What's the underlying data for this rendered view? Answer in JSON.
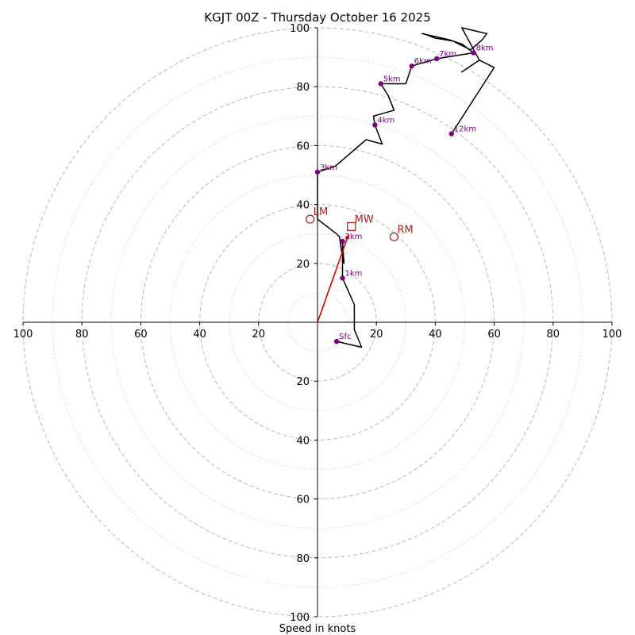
{
  "chart_data": {
    "type": "hodograph",
    "title": "KGJT 00Z - Thursday October 16 2025",
    "xlabel": "Speed in knots",
    "ylabel": "",
    "axis_range": [
      -100,
      100
    ],
    "ring_dashed": [
      20,
      40,
      60,
      80,
      100
    ],
    "ring_dotted": [
      10,
      30,
      50,
      70,
      90
    ],
    "x_ticks": [
      "100",
      "80",
      "60",
      "40",
      "20",
      "20",
      "40",
      "60",
      "80",
      "100"
    ],
    "x_tick_values": [
      -100,
      -80,
      -60,
      -40,
      -20,
      20,
      40,
      60,
      80,
      100
    ],
    "y_ticks_upper": [
      "100",
      "80",
      "60",
      "40",
      "20"
    ],
    "y_tick_values_upper": [
      100,
      80,
      60,
      40,
      20
    ],
    "y_ticks_lower": [
      "20",
      "40",
      "60",
      "80",
      "100"
    ],
    "y_tick_values_lower": [
      -20,
      -40,
      -60,
      -80,
      -100
    ],
    "trace": {
      "color": "#000000",
      "points": [
        [
          6.5,
          -6.5
        ],
        [
          15,
          -8.5
        ],
        [
          12.5,
          -2.5
        ],
        [
          12.5,
          6
        ],
        [
          8.5,
          15
        ],
        [
          8.5,
          27.5
        ],
        [
          9,
          20
        ],
        [
          8,
          25
        ],
        [
          7.5,
          29
        ],
        [
          6.5,
          30
        ],
        [
          0,
          35
        ],
        [
          0,
          51
        ],
        [
          6,
          53
        ],
        [
          16.5,
          62
        ],
        [
          22,
          60.5
        ],
        [
          19.5,
          67
        ],
        [
          19,
          70
        ],
        [
          26,
          72
        ],
        [
          24,
          77
        ],
        [
          21.5,
          81
        ],
        [
          30,
          81
        ],
        [
          32,
          87
        ],
        [
          40.5,
          89.5
        ],
        [
          53,
          91.5
        ],
        [
          49,
          94.5
        ],
        [
          44.5,
          96
        ],
        [
          35.5,
          98
        ],
        [
          36,
          98
        ],
        [
          40,
          96.5
        ],
        [
          46,
          95.5
        ],
        [
          52,
          92.5
        ],
        [
          56,
          96
        ],
        [
          57.5,
          98
        ],
        [
          49,
          100
        ],
        [
          55,
          89
        ],
        [
          49,
          85
        ],
        [
          55,
          89
        ],
        [
          60,
          86.5
        ],
        [
          45.5,
          64
        ]
      ]
    },
    "height_markers": [
      {
        "label": "Sfc",
        "u": 6.5,
        "v": -6.5
      },
      {
        "label": "1km",
        "u": 8.5,
        "v": 15
      },
      {
        "label": "2km",
        "u": 8.5,
        "v": 27.5
      },
      {
        "label": "3km",
        "u": 0,
        "v": 51
      },
      {
        "label": "4km",
        "u": 19.5,
        "v": 67
      },
      {
        "label": "5km",
        "u": 21.5,
        "v": 81
      },
      {
        "label": "6km",
        "u": 32,
        "v": 87
      },
      {
        "label": "7km",
        "u": 40.5,
        "v": 89.5
      },
      {
        "label": "8km",
        "u": 53,
        "v": 91.5
      },
      {
        "label": "12km",
        "u": 45.5,
        "v": 64
      }
    ],
    "marker_color": "#800080",
    "storm_motion": {
      "color": "#b22222",
      "vector_color": "#dd0000",
      "points": [
        {
          "label": "LM",
          "u": -2.5,
          "v": 35,
          "symbol": "circle"
        },
        {
          "label": "MW",
          "u": 11.5,
          "v": 32.5,
          "symbol": "square"
        },
        {
          "label": "RM",
          "u": 26,
          "v": 29,
          "symbol": "circle"
        }
      ],
      "vector_to": "MW"
    }
  }
}
